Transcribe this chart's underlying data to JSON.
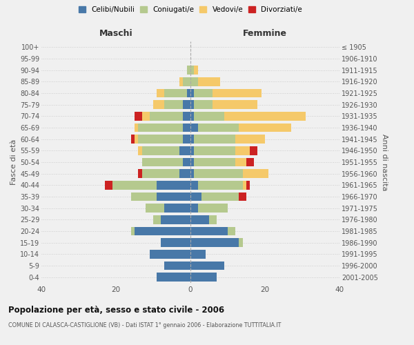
{
  "age_groups": [
    "0-4",
    "5-9",
    "10-14",
    "15-19",
    "20-24",
    "25-29",
    "30-34",
    "35-39",
    "40-44",
    "45-49",
    "50-54",
    "55-59",
    "60-64",
    "65-69",
    "70-74",
    "75-79",
    "80-84",
    "85-89",
    "90-94",
    "95-99",
    "100+"
  ],
  "birth_years": [
    "2001-2005",
    "1996-2000",
    "1991-1995",
    "1986-1990",
    "1981-1985",
    "1976-1980",
    "1971-1975",
    "1966-1970",
    "1961-1965",
    "1956-1960",
    "1951-1955",
    "1946-1950",
    "1941-1945",
    "1936-1940",
    "1931-1935",
    "1926-1930",
    "1921-1925",
    "1916-1920",
    "1911-1915",
    "1906-1910",
    "≤ 1905"
  ],
  "maschi": {
    "celibi": [
      9,
      7,
      11,
      8,
      15,
      8,
      7,
      9,
      9,
      3,
      2,
      3,
      2,
      2,
      2,
      2,
      1,
      0,
      0,
      0,
      0
    ],
    "coniugati": [
      0,
      0,
      0,
      0,
      1,
      2,
      5,
      7,
      12,
      10,
      11,
      10,
      12,
      12,
      9,
      5,
      6,
      2,
      1,
      0,
      0
    ],
    "vedovi": [
      0,
      0,
      0,
      0,
      0,
      0,
      0,
      0,
      0,
      0,
      0,
      1,
      1,
      1,
      2,
      3,
      2,
      1,
      0,
      0,
      0
    ],
    "divorziati": [
      0,
      0,
      0,
      0,
      0,
      0,
      0,
      0,
      2,
      1,
      0,
      0,
      1,
      0,
      2,
      0,
      0,
      0,
      0,
      0,
      0
    ]
  },
  "femmine": {
    "nubili": [
      7,
      9,
      4,
      13,
      10,
      5,
      2,
      3,
      2,
      1,
      1,
      1,
      1,
      2,
      1,
      1,
      1,
      0,
      0,
      0,
      0
    ],
    "coniugate": [
      0,
      0,
      0,
      1,
      2,
      2,
      8,
      10,
      12,
      13,
      11,
      11,
      11,
      11,
      8,
      5,
      5,
      2,
      1,
      0,
      0
    ],
    "vedove": [
      0,
      0,
      0,
      0,
      0,
      0,
      0,
      0,
      1,
      7,
      3,
      4,
      8,
      14,
      22,
      12,
      13,
      6,
      1,
      0,
      0
    ],
    "divorziate": [
      0,
      0,
      0,
      0,
      0,
      0,
      0,
      2,
      1,
      0,
      2,
      2,
      0,
      0,
      0,
      0,
      0,
      0,
      0,
      0,
      0
    ]
  },
  "colors": {
    "celibi": "#4878a8",
    "coniugati": "#b5c98e",
    "vedovi": "#f5c96a",
    "divorziati": "#cc2222"
  },
  "title": "Popolazione per età, sesso e stato civile - 2006",
  "subtitle": "COMUNE DI CALASCA-CASTIGLIONE (VB) - Dati ISTAT 1° gennaio 2006 - Elaborazione TUTTITALIA.IT",
  "xlabel_left": "Maschi",
  "xlabel_right": "Femmine",
  "ylabel_left": "Fasce di età",
  "ylabel_right": "Anni di nascita",
  "xlim": 40,
  "background_color": "#f0f0f0"
}
